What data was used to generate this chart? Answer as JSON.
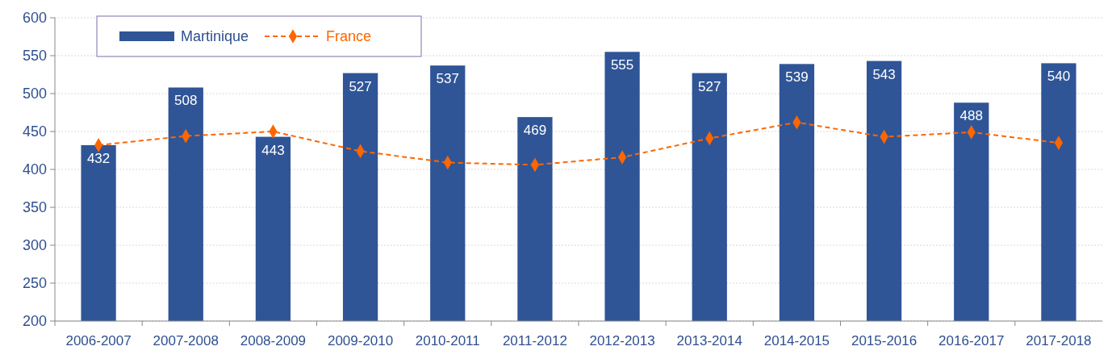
{
  "chart_data": {
    "type": "bar",
    "categories": [
      "2006-2007",
      "2007-2008",
      "2008-2009",
      "2009-2010",
      "2010-2011",
      "2011-2012",
      "2012-2013",
      "2013-2014",
      "2014-2015",
      "2015-2016",
      "2016-2017",
      "2017-2018"
    ],
    "series": [
      {
        "name": "Martinique",
        "color": "#2f5597",
        "values": [
          432,
          508,
          443,
          527,
          537,
          469,
          555,
          527,
          539,
          543,
          488,
          540
        ],
        "value_labels": [
          "432",
          "508",
          "443",
          "527",
          "537",
          "469",
          "555",
          "527",
          "539",
          "543",
          "488",
          "540"
        ]
      },
      {
        "name": "France",
        "type": "line",
        "color": "#ff6600",
        "marker": "diamond",
        "line_style": "dashed",
        "values": [
          432,
          444,
          450,
          424,
          409,
          406,
          416,
          441,
          462,
          443,
          449,
          435
        ]
      }
    ],
    "ylim": [
      200,
      600
    ],
    "yticks": [
      200,
      250,
      300,
      350,
      400,
      450,
      500,
      550,
      600
    ],
    "grid": "y",
    "legend": "top left"
  }
}
